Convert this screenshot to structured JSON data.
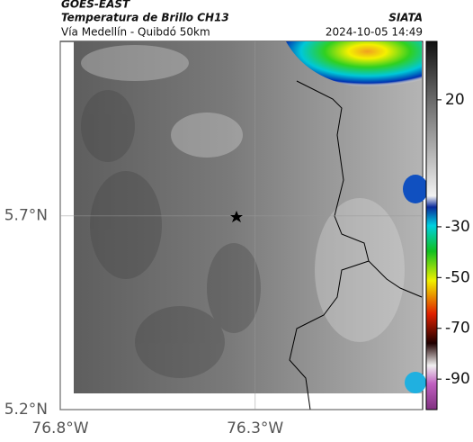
{
  "header": {
    "source": "GOES-EAST",
    "title": "Temperatura de Brillo CH13",
    "org": "SIATA",
    "subtitle": "Vía Medellín - Quibdó 50km",
    "timestamp": "2024-10-05 14:49"
  },
  "map": {
    "xlim": [
      -76.8,
      -75.87
    ],
    "ylim": [
      5.2,
      6.15
    ],
    "xticks": [
      {
        "value": -76.8,
        "label": "76.8°W"
      },
      {
        "value": -76.3,
        "label": "76.3°W"
      }
    ],
    "yticks": [
      {
        "value": 5.7,
        "label": "5.7°N"
      },
      {
        "value": 5.2,
        "label": "5.2°N"
      }
    ]
  },
  "colorbar": {
    "lim": [
      -102,
      43
    ],
    "ticks": [
      20,
      -30,
      -50,
      -70,
      -90
    ]
  }
}
